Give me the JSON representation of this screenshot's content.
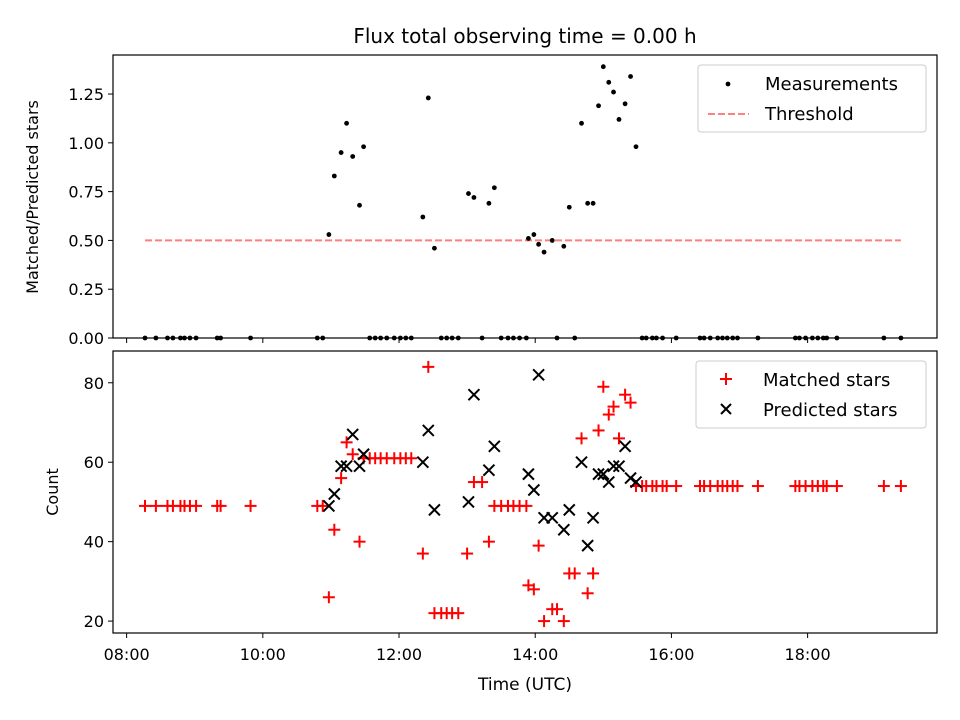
{
  "chart_data": [
    {
      "type": "scatter",
      "title": "Flux total observing time = 0.00 h",
      "xlabel": "",
      "ylabel": "Matched/Predicted stars",
      "xlim_hours": [
        7.8,
        19.9
      ],
      "ylim": [
        0,
        1.45
      ],
      "yticks": [
        0.0,
        0.25,
        0.5,
        0.75,
        1.0,
        1.25
      ],
      "ytick_labels": [
        "0.00",
        "0.25",
        "0.50",
        "0.75",
        "1.00",
        "1.25"
      ],
      "legend_position": "top-right",
      "legend": [
        {
          "label": "Measurements",
          "marker": "dot",
          "color": "#000000"
        },
        {
          "label": "Threshold",
          "marker": "dashed-line",
          "color": "#ff7f7f"
        }
      ],
      "threshold": {
        "value": 0.5,
        "x_range_hours": [
          8.27,
          19.37
        ],
        "color": "#ff7f7f"
      },
      "series": [
        {
          "name": "Measurements",
          "color": "#000000",
          "points": [
            [
              8.27,
              0
            ],
            [
              8.43,
              0
            ],
            [
              8.6,
              0
            ],
            [
              8.68,
              0
            ],
            [
              8.79,
              0
            ],
            [
              8.85,
              0
            ],
            [
              8.93,
              0
            ],
            [
              9.02,
              0
            ],
            [
              9.33,
              0
            ],
            [
              9.38,
              0
            ],
            [
              9.82,
              0
            ],
            [
              10.8,
              0
            ],
            [
              10.88,
              0
            ],
            [
              10.97,
              0.53
            ],
            [
              11.05,
              0.83
            ],
            [
              11.15,
              0.95
            ],
            [
              11.23,
              1.1
            ],
            [
              11.32,
              0.93
            ],
            [
              11.42,
              0.68
            ],
            [
              11.48,
              0.98
            ],
            [
              11.57,
              0
            ],
            [
              11.65,
              0
            ],
            [
              11.73,
              0
            ],
            [
              11.82,
              0
            ],
            [
              11.93,
              0
            ],
            [
              12.02,
              0
            ],
            [
              12.1,
              0
            ],
            [
              12.18,
              0
            ],
            [
              12.35,
              0.62
            ],
            [
              12.43,
              1.23
            ],
            [
              12.52,
              0.46
            ],
            [
              12.62,
              0
            ],
            [
              12.7,
              0
            ],
            [
              12.78,
              0
            ],
            [
              12.87,
              0
            ],
            [
              13.02,
              0.74
            ],
            [
              13.1,
              0.72
            ],
            [
              13.22,
              0
            ],
            [
              13.32,
              0.69
            ],
            [
              13.4,
              0.77
            ],
            [
              13.5,
              0
            ],
            [
              13.6,
              0
            ],
            [
              13.68,
              0
            ],
            [
              13.77,
              0
            ],
            [
              13.87,
              0
            ],
            [
              13.9,
              0.51
            ],
            [
              13.98,
              0.53
            ],
            [
              14.05,
              0.48
            ],
            [
              14.13,
              0.44
            ],
            [
              14.25,
              0.5
            ],
            [
              14.32,
              0
            ],
            [
              14.42,
              0.47
            ],
            [
              14.5,
              0.67
            ],
            [
              14.58,
              0
            ],
            [
              14.68,
              1.1
            ],
            [
              14.77,
              0.69
            ],
            [
              14.85,
              0.69
            ],
            [
              14.93,
              1.19
            ],
            [
              15.0,
              1.39
            ],
            [
              15.08,
              1.31
            ],
            [
              15.15,
              1.26
            ],
            [
              15.23,
              1.12
            ],
            [
              15.32,
              1.2
            ],
            [
              15.4,
              1.34
            ],
            [
              15.48,
              0.98
            ],
            [
              15.57,
              0
            ],
            [
              15.63,
              0
            ],
            [
              15.72,
              0
            ],
            [
              15.78,
              0
            ],
            [
              15.87,
              0
            ],
            [
              16.07,
              0
            ],
            [
              16.42,
              0
            ],
            [
              16.48,
              0
            ],
            [
              16.57,
              0
            ],
            [
              16.68,
              0
            ],
            [
              16.75,
              0
            ],
            [
              16.82,
              0
            ],
            [
              16.9,
              0
            ],
            [
              16.97,
              0
            ],
            [
              17.27,
              0
            ],
            [
              17.82,
              0
            ],
            [
              17.88,
              0
            ],
            [
              17.97,
              0
            ],
            [
              18.07,
              0
            ],
            [
              18.15,
              0
            ],
            [
              18.23,
              0
            ],
            [
              18.28,
              0
            ],
            [
              18.43,
              0
            ],
            [
              19.12,
              0
            ],
            [
              19.37,
              0
            ]
          ]
        }
      ]
    },
    {
      "type": "scatter",
      "title": "",
      "xlabel": "Time (UTC)",
      "ylabel": "Count",
      "xlim_hours": [
        7.8,
        19.9
      ],
      "ylim": [
        17,
        88
      ],
      "yticks": [
        20,
        40,
        60,
        80
      ],
      "ytick_labels": [
        "20",
        "40",
        "60",
        "80"
      ],
      "xticks_hours": [
        8,
        10,
        12,
        14,
        16,
        18
      ],
      "xtick_labels": [
        "08:00",
        "10:00",
        "12:00",
        "14:00",
        "16:00",
        "18:00"
      ],
      "legend_position": "top-right",
      "legend": [
        {
          "label": "Matched stars",
          "marker": "plus",
          "color": "#ff0000"
        },
        {
          "label": "Predicted stars",
          "marker": "x",
          "color": "#000000"
        }
      ],
      "series": [
        {
          "name": "Matched stars",
          "marker": "plus",
          "color": "#ff0000",
          "points": [
            [
              8.27,
              49
            ],
            [
              8.43,
              49
            ],
            [
              8.6,
              49
            ],
            [
              8.68,
              49
            ],
            [
              8.79,
              49
            ],
            [
              8.85,
              49
            ],
            [
              8.93,
              49
            ],
            [
              9.02,
              49
            ],
            [
              9.33,
              49
            ],
            [
              9.38,
              49
            ],
            [
              9.82,
              49
            ],
            [
              10.8,
              49
            ],
            [
              10.88,
              49
            ],
            [
              10.97,
              26
            ],
            [
              11.05,
              43
            ],
            [
              11.15,
              56
            ],
            [
              11.23,
              65
            ],
            [
              11.32,
              62
            ],
            [
              11.42,
              40
            ],
            [
              11.48,
              61
            ],
            [
              11.57,
              61
            ],
            [
              11.65,
              61
            ],
            [
              11.73,
              61
            ],
            [
              11.82,
              61
            ],
            [
              11.93,
              61
            ],
            [
              12.02,
              61
            ],
            [
              12.1,
              61
            ],
            [
              12.18,
              61
            ],
            [
              12.35,
              37
            ],
            [
              12.43,
              84
            ],
            [
              12.52,
              22
            ],
            [
              12.62,
              22
            ],
            [
              12.7,
              22
            ],
            [
              12.78,
              22
            ],
            [
              12.87,
              22
            ],
            [
              13.0,
              37
            ],
            [
              13.1,
              55
            ],
            [
              13.22,
              55
            ],
            [
              13.32,
              40
            ],
            [
              13.4,
              49
            ],
            [
              13.5,
              49
            ],
            [
              13.6,
              49
            ],
            [
              13.68,
              49
            ],
            [
              13.77,
              49
            ],
            [
              13.87,
              49
            ],
            [
              13.9,
              29
            ],
            [
              13.98,
              28
            ],
            [
              14.05,
              39
            ],
            [
              14.13,
              20
            ],
            [
              14.25,
              23
            ],
            [
              14.32,
              23
            ],
            [
              14.42,
              20
            ],
            [
              14.5,
              32
            ],
            [
              14.58,
              32
            ],
            [
              14.68,
              66
            ],
            [
              14.77,
              27
            ],
            [
              14.85,
              32
            ],
            [
              14.93,
              68
            ],
            [
              15.0,
              79
            ],
            [
              15.08,
              72
            ],
            [
              15.15,
              74
            ],
            [
              15.23,
              66
            ],
            [
              15.32,
              77
            ],
            [
              15.4,
              75
            ],
            [
              15.48,
              54
            ],
            [
              15.57,
              54
            ],
            [
              15.63,
              54
            ],
            [
              15.72,
              54
            ],
            [
              15.78,
              54
            ],
            [
              15.87,
              54
            ],
            [
              15.93,
              54
            ],
            [
              16.07,
              54
            ],
            [
              16.42,
              54
            ],
            [
              16.48,
              54
            ],
            [
              16.57,
              54
            ],
            [
              16.68,
              54
            ],
            [
              16.75,
              54
            ],
            [
              16.82,
              54
            ],
            [
              16.9,
              54
            ],
            [
              16.97,
              54
            ],
            [
              17.27,
              54
            ],
            [
              17.82,
              54
            ],
            [
              17.88,
              54
            ],
            [
              17.97,
              54
            ],
            [
              18.07,
              54
            ],
            [
              18.15,
              54
            ],
            [
              18.23,
              54
            ],
            [
              18.28,
              54
            ],
            [
              18.43,
              54
            ],
            [
              19.12,
              54
            ],
            [
              19.37,
              54
            ]
          ]
        },
        {
          "name": "Predicted stars",
          "marker": "x",
          "color": "#000000",
          "points": [
            [
              10.97,
              49
            ],
            [
              11.05,
              52
            ],
            [
              11.15,
              59
            ],
            [
              11.23,
              59
            ],
            [
              11.32,
              67
            ],
            [
              11.42,
              59
            ],
            [
              11.48,
              62
            ],
            [
              12.35,
              60
            ],
            [
              12.43,
              68
            ],
            [
              12.52,
              48
            ],
            [
              13.02,
              50
            ],
            [
              13.1,
              77
            ],
            [
              13.32,
              58
            ],
            [
              13.4,
              64
            ],
            [
              13.9,
              57
            ],
            [
              13.98,
              53
            ],
            [
              14.05,
              82
            ],
            [
              14.13,
              46
            ],
            [
              14.25,
              46
            ],
            [
              14.42,
              43
            ],
            [
              14.5,
              48
            ],
            [
              14.68,
              60
            ],
            [
              14.77,
              39
            ],
            [
              14.85,
              46
            ],
            [
              14.93,
              57
            ],
            [
              15.0,
              57
            ],
            [
              15.08,
              55
            ],
            [
              15.15,
              59
            ],
            [
              15.23,
              59
            ],
            [
              15.32,
              64
            ],
            [
              15.4,
              56
            ],
            [
              15.48,
              55
            ]
          ]
        }
      ]
    }
  ]
}
